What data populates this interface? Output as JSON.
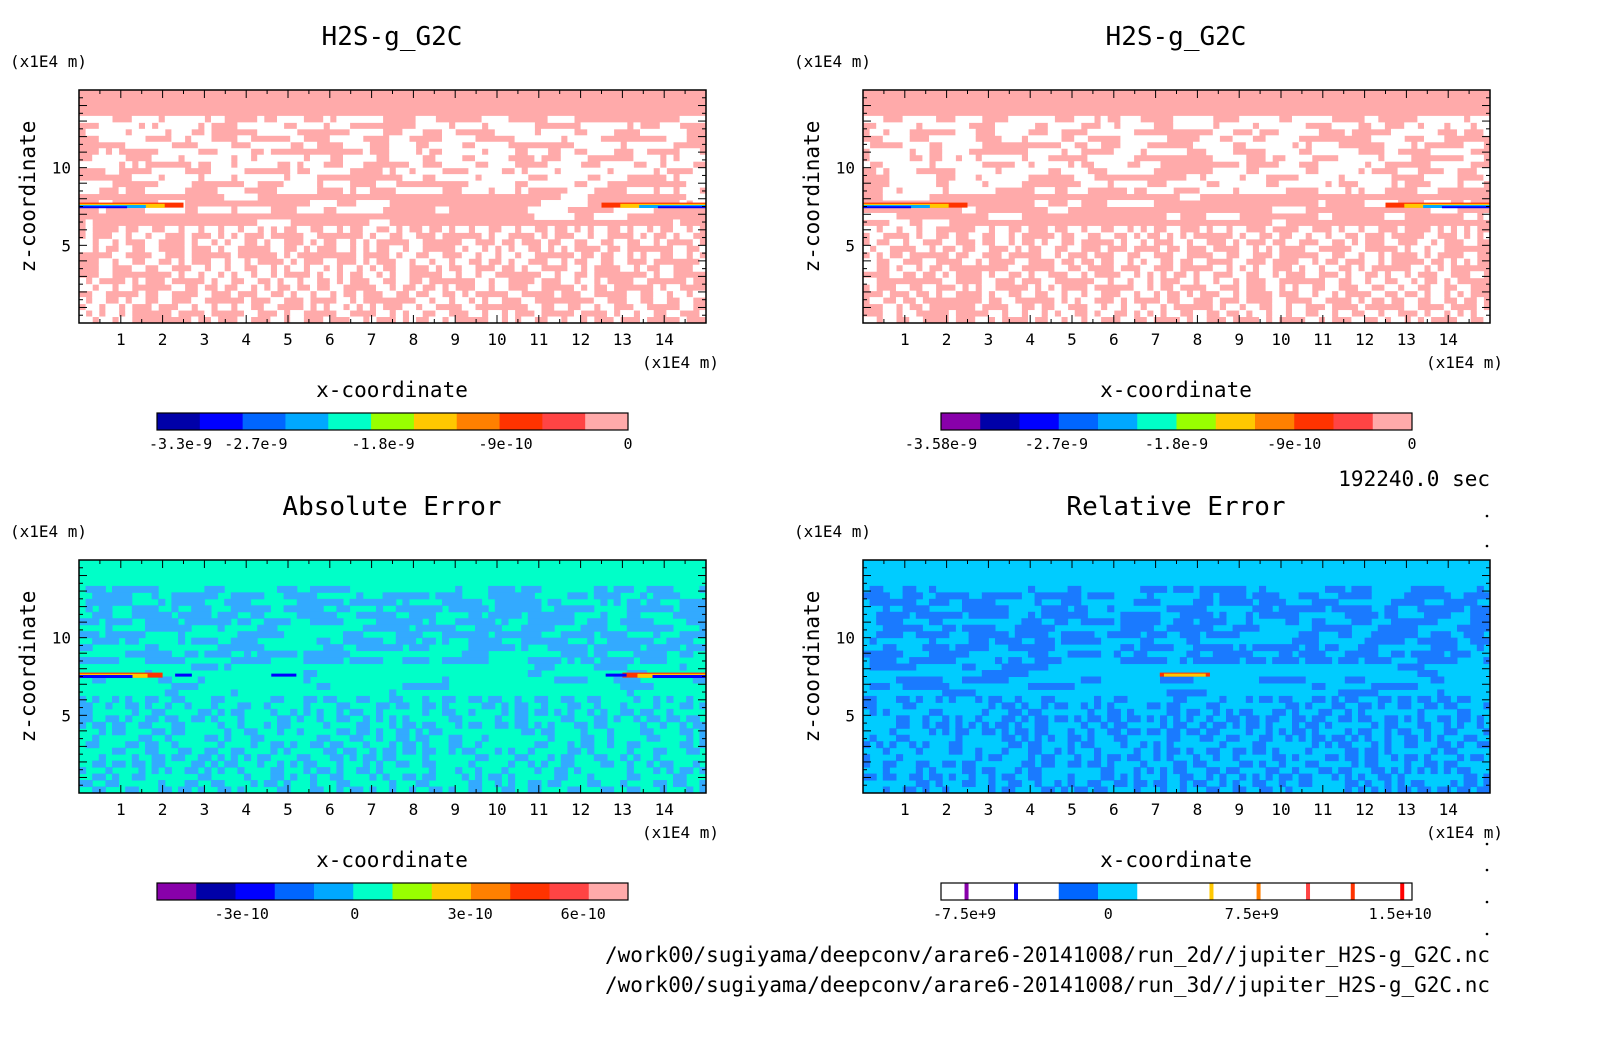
{
  "chart_data": [
    {
      "type": "heatmap",
      "title": "H2S-g_G2C",
      "xlabel": "x-coordinate",
      "ylabel": "z-coordinate",
      "x_unit": "(x1E4 m)",
      "y_unit": "(x1E4 m)",
      "xlim": [
        0,
        15
      ],
      "ylim": [
        0,
        15
      ],
      "x_ticks": [
        "1",
        "2",
        "3",
        "4",
        "5",
        "6",
        "7",
        "8",
        "9",
        "10",
        "11",
        "12",
        "13",
        "14"
      ],
      "y_ticks": [
        "5",
        "10"
      ],
      "colorbar": {
        "labels": [
          "-3.3e-9",
          "-2.7e-9",
          "-1.8e-9",
          "-9e-10",
          "0"
        ],
        "colors": [
          "#0000a8",
          "#0000ff",
          "#0066ff",
          "#00a8ff",
          "#00ffc8",
          "#99ff00",
          "#ffc800",
          "#ff8000",
          "#ff3300",
          "#ff4444",
          "#ffaaaa"
        ]
      },
      "field": {
        "background": "#ffaaaa",
        "speckle": "#ffffff",
        "feature_colors": [
          "#ff3300",
          "#ffc800",
          "#00a8ff",
          "#0000ff"
        ]
      }
    },
    {
      "type": "heatmap",
      "title": "H2S-g_G2C",
      "xlabel": "x-coordinate",
      "ylabel": "z-coordinate",
      "x_unit": "(x1E4 m)",
      "y_unit": "(x1E4 m)",
      "xlim": [
        0,
        15
      ],
      "ylim": [
        0,
        15
      ],
      "x_ticks": [
        "1",
        "2",
        "3",
        "4",
        "5",
        "6",
        "7",
        "8",
        "9",
        "10",
        "11",
        "12",
        "13",
        "14"
      ],
      "y_ticks": [
        "5",
        "10"
      ],
      "colorbar": {
        "labels": [
          "-3.58e-9",
          "-2.7e-9",
          "-1.8e-9",
          "-9e-10",
          "0"
        ],
        "colors": [
          "#8800aa",
          "#0000a8",
          "#0000ff",
          "#0066ff",
          "#00a8ff",
          "#00ffc8",
          "#99ff00",
          "#ffc800",
          "#ff8000",
          "#ff3300",
          "#ff4444",
          "#ffaaaa"
        ]
      },
      "field": {
        "background": "#ffaaaa",
        "speckle": "#ffffff",
        "feature_colors": [
          "#ff3300",
          "#ffc800",
          "#00a8ff",
          "#0000ff"
        ]
      }
    },
    {
      "type": "heatmap",
      "title": "Absolute Error",
      "xlabel": "x-coordinate",
      "ylabel": "z-coordinate",
      "x_unit": "(x1E4 m)",
      "y_unit": "(x1E4 m)",
      "xlim": [
        0,
        15
      ],
      "ylim": [
        0,
        15
      ],
      "x_ticks": [
        "1",
        "2",
        "3",
        "4",
        "5",
        "6",
        "7",
        "8",
        "9",
        "10",
        "11",
        "12",
        "13",
        "14"
      ],
      "y_ticks": [
        "5",
        "10"
      ],
      "colorbar": {
        "labels": [
          "-3e-10",
          "0",
          "3e-10",
          "6e-10"
        ],
        "colors": [
          "#8800aa",
          "#0000a8",
          "#0000ff",
          "#0066ff",
          "#00a8ff",
          "#00ffc8",
          "#99ff00",
          "#ffc800",
          "#ff8000",
          "#ff3300",
          "#ff4444",
          "#ffaaaa"
        ]
      },
      "field": {
        "background": "#00ffc8",
        "speckle": "#33aaff",
        "feature_colors": [
          "#ff3300",
          "#ffc800",
          "#0000ff"
        ]
      }
    },
    {
      "type": "heatmap",
      "title": "Relative Error",
      "xlabel": "x-coordinate",
      "ylabel": "z-coordinate",
      "x_unit": "(x1E4 m)",
      "y_unit": "(x1E4 m)",
      "xlim": [
        0,
        15
      ],
      "ylim": [
        0,
        15
      ],
      "x_ticks": [
        "1",
        "2",
        "3",
        "4",
        "5",
        "6",
        "7",
        "8",
        "9",
        "10",
        "11",
        "12",
        "13",
        "14"
      ],
      "y_ticks": [
        "5",
        "10"
      ],
      "colorbar": {
        "labels": [
          "-7.5e+9",
          "0",
          "7.5e+9",
          "1.5e+10"
        ],
        "colors": [
          "#ffffff",
          "#ffffff",
          "#ffffff",
          "#0066ff",
          "#00ccff",
          "#ffffff",
          "#ffffff",
          "#ffffff",
          "#ffffff",
          "#ffffff",
          "#ffffff",
          "#ffffff"
        ],
        "lines": [
          "#8800aa",
          "#0000ff",
          "#ffc800",
          "#ff8000",
          "#ff4444",
          "#ff3300",
          "#ff0000"
        ]
      },
      "field": {
        "background": "#00ccff",
        "speckle": "#1a7aff",
        "feature_colors": [
          "#ff3300",
          "#ffc800"
        ]
      }
    }
  ],
  "time_label": "192240.0 sec",
  "file_paths": [
    "/work00/sugiyama/deepconv/arare6-20141008/run_2d//jupiter_H2S-g_G2C.nc",
    "/work00/sugiyama/deepconv/arare6-20141008/run_3d//jupiter_H2S-g_G2C.nc"
  ]
}
